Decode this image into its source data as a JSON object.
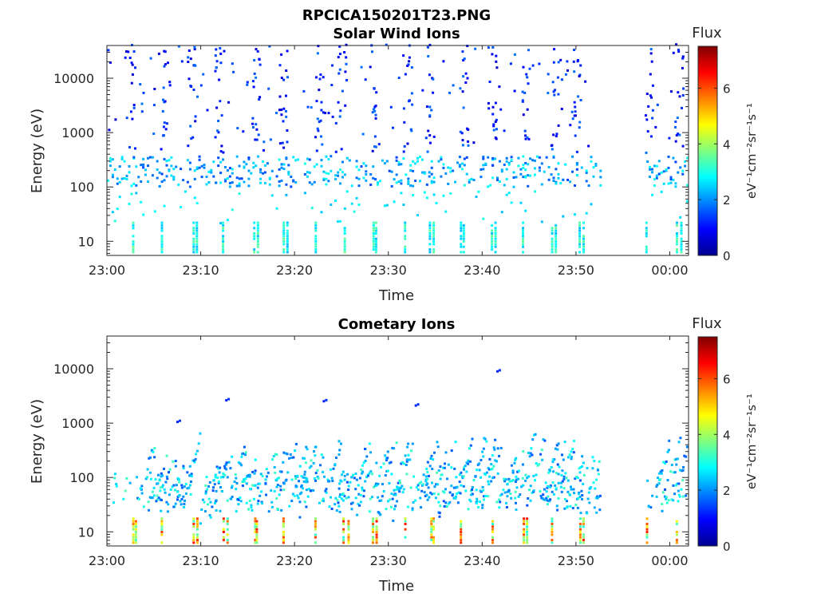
{
  "figure_title": "RPCICA150201T23.PNG",
  "chart_data": [
    {
      "type": "heatmap",
      "title": "Solar Wind Ions",
      "xlabel": "Time",
      "ylabel": "Energy (eV)",
      "x_ticks": [
        "23:00",
        "23:10",
        "23:20",
        "23:30",
        "23:40",
        "23:50",
        "00:00"
      ],
      "x_range_minutes": [
        0,
        62
      ],
      "y_scale": "log",
      "y_ticks": [
        "10",
        "100",
        "1000",
        "10000"
      ],
      "y_range": [
        5.5,
        40000
      ],
      "colorbar": {
        "label": "Flux",
        "unit": "eV⁻¹cm⁻²sr⁻¹s⁻¹",
        "ticks": [
          "0",
          "2",
          "4",
          "6"
        ],
        "range": [
          0,
          7.5
        ],
        "colormap": "jet"
      },
      "data_gap_minutes": [
        52.5,
        57.3
      ],
      "pulses_minutes": [
        2.7,
        5.7,
        9.2,
        12.3,
        15.6,
        18.7,
        22.1,
        25.2,
        28.3,
        31.7,
        34.4,
        37.6,
        41.0,
        44.3,
        47.3,
        50.3,
        57.4,
        60.7
      ],
      "features": [
        {
          "band": "low-energy lines",
          "energy_range_eV": [
            6,
            22
          ],
          "flux_range": [
            2.3,
            3.6
          ]
        },
        {
          "band": "main solar wind",
          "energy_range_eV": [
            95,
            350
          ],
          "flux_range": [
            1.4,
            3.0
          ]
        },
        {
          "band": "high-energy speckles",
          "energy_range_eV": [
            400,
            40000
          ],
          "flux_range": [
            0.6,
            1.8
          ]
        }
      ]
    },
    {
      "type": "heatmap",
      "title": "Cometary Ions",
      "xlabel": "Time",
      "ylabel": "Energy (eV)",
      "x_ticks": [
        "23:00",
        "23:10",
        "23:20",
        "23:30",
        "23:40",
        "23:50",
        "00:00"
      ],
      "x_range_minutes": [
        0,
        62
      ],
      "y_scale": "log",
      "y_ticks": [
        "10",
        "100",
        "1000",
        "10000"
      ],
      "y_range": [
        5.5,
        40000
      ],
      "colorbar": {
        "label": "Flux",
        "unit": "eV⁻¹cm⁻²sr⁻¹s⁻¹",
        "ticks": [
          "0",
          "2",
          "4",
          "6"
        ],
        "range": [
          0,
          7.5
        ],
        "colormap": "jet"
      },
      "data_gap_minutes": [
        52.5,
        57.3
      ],
      "pulses_minutes": [
        2.7,
        5.7,
        9.2,
        12.3,
        15.6,
        18.7,
        22.1,
        25.2,
        28.3,
        31.7,
        34.4,
        37.6,
        41.0,
        44.3,
        47.3,
        50.3,
        57.4,
        60.7
      ],
      "features": [
        {
          "band": "low-energy lines",
          "energy_range_eV": [
            6,
            18
          ],
          "flux_range": [
            3.0,
            6.5
          ]
        },
        {
          "band": "cometary ion streaks",
          "energy_range_eV": [
            20,
            700
          ],
          "flux_range": [
            1.5,
            3.3
          ]
        }
      ],
      "isolated_points": [
        {
          "t": 7.4,
          "energy_eV": 1000
        },
        {
          "t": 12.6,
          "energy_eV": 2500
        },
        {
          "t": 23.0,
          "energy_eV": 2400
        },
        {
          "t": 32.8,
          "energy_eV": 2000
        },
        {
          "t": 41.5,
          "energy_eV": 8500
        }
      ]
    }
  ]
}
